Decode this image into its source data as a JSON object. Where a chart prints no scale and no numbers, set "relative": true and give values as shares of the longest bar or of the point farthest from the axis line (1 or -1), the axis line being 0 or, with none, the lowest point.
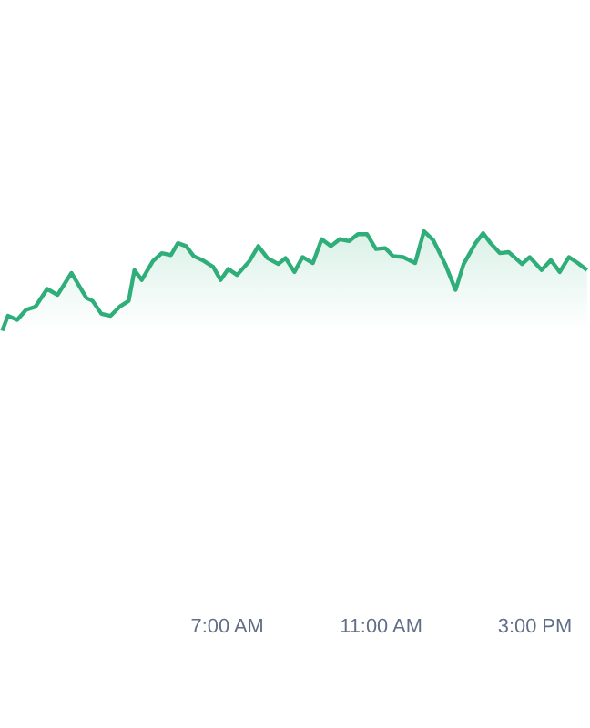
{
  "chart_data": {
    "type": "area",
    "relative": true,
    "color": "#2fae7a",
    "x": [
      1.17,
      1.32,
      1.56,
      1.79,
      2.03,
      2.34,
      2.61,
      2.97,
      3.36,
      3.52,
      3.75,
      3.99,
      4.22,
      4.46,
      4.61,
      4.8,
      5.09,
      5.32,
      5.56,
      5.74,
      5.95,
      6.15,
      6.42,
      6.66,
      6.85,
      7.05,
      7.28,
      7.6,
      7.83,
      8.07,
      8.35,
      8.54,
      8.77,
      8.98,
      9.25,
      9.48,
      9.72,
      9.95,
      10.19,
      10.42,
      10.66,
      10.89,
      11.13,
      11.33,
      11.6,
      11.91,
      12.14,
      12.38,
      12.69,
      12.96,
      13.17,
      13.48,
      13.68,
      13.87,
      14.11,
      14.34,
      14.69,
      14.89,
      15.2,
      15.44,
      15.67,
      15.91,
      16.14,
      16.38
    ],
    "values": [
      0,
      0.15,
      0.11,
      0.21,
      0.24,
      0.42,
      0.36,
      0.58,
      0.33,
      0.3,
      0.17,
      0.15,
      0.24,
      0.3,
      0.61,
      0.51,
      0.7,
      0.78,
      0.76,
      0.88,
      0.85,
      0.75,
      0.7,
      0.64,
      0.51,
      0.62,
      0.56,
      0.7,
      0.85,
      0.73,
      0.67,
      0.73,
      0.59,
      0.74,
      0.68,
      0.92,
      0.85,
      0.92,
      0.9,
      0.97,
      0.97,
      0.82,
      0.83,
      0.75,
      0.74,
      0.68,
      1,
      0.91,
      0.67,
      0.41,
      0.67,
      0.88,
      0.98,
      0.88,
      0.78,
      0.79,
      0.67,
      0.74,
      0.61,
      0.71,
      0.59,
      0.74,
      0.68,
      0.61
    ],
    "xlim": [
      1.16,
      16.41
    ],
    "xticks": [
      {
        "value": 7,
        "label": "7:00 AM"
      },
      {
        "value": 11,
        "label": "11:00 AM"
      },
      {
        "value": 15,
        "label": "3:00 PM"
      }
    ],
    "tick_labels": "x",
    "grid": false,
    "marker": "none",
    "line_style": "solid"
  }
}
